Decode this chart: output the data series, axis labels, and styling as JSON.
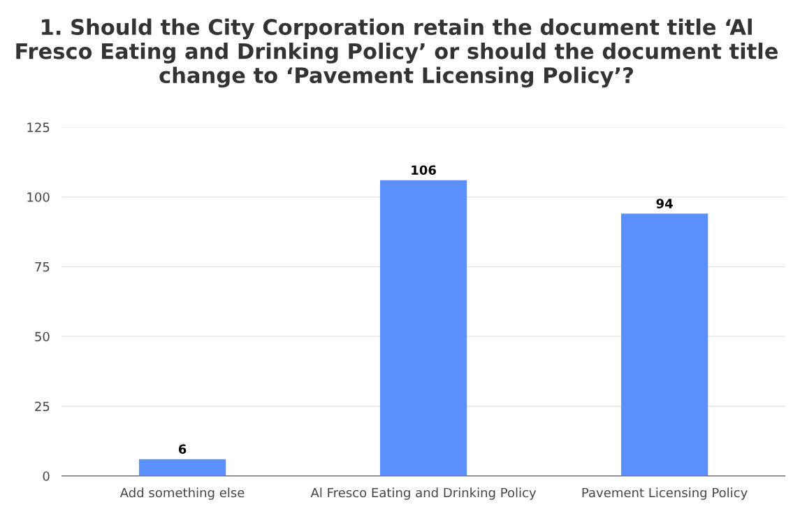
{
  "chart_data": {
    "type": "bar",
    "title": "1. Should the City Corporation retain the document title ‘Al Fresco Eating and Drinking Policy’ or should the document title change to ‘Pavement Licensing Policy’?",
    "categories": [
      "Add something else",
      "Al Fresco Eating and Drinking Policy",
      "Pavement Licensing Policy"
    ],
    "values": [
      6,
      106,
      94
    ],
    "color": "#5b8ff9",
    "ylim": [
      0,
      125
    ],
    "yticks": [
      0,
      25,
      50,
      75,
      100,
      125
    ],
    "grid": "y",
    "data_labels": true
  }
}
